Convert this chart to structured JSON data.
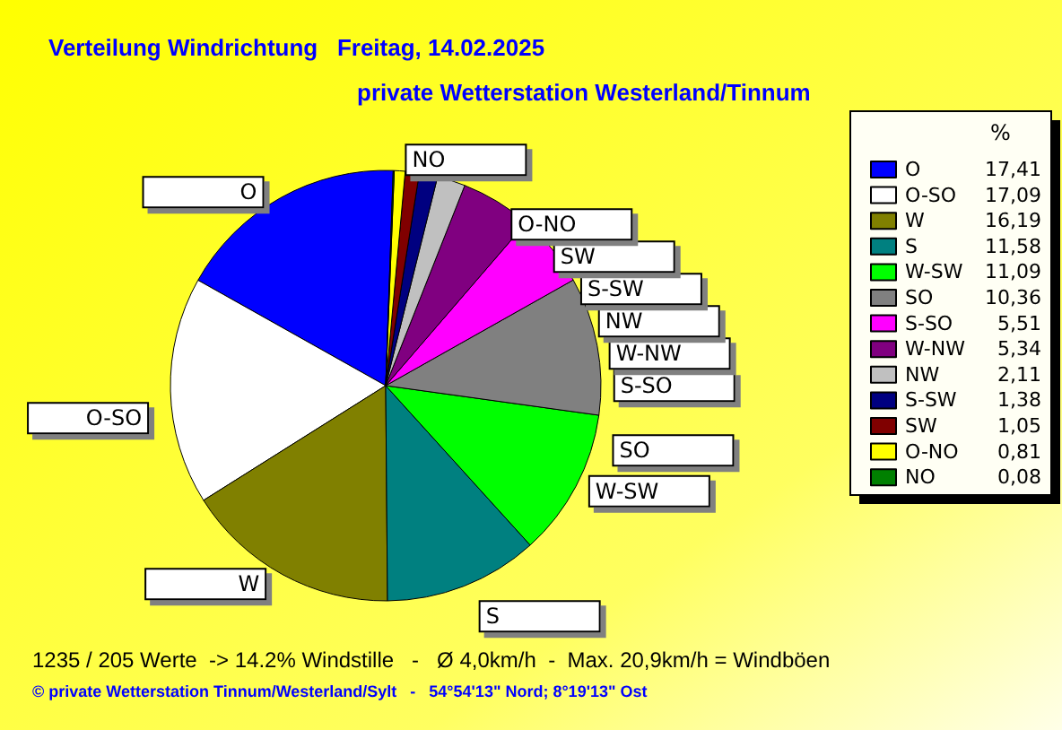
{
  "chart_data": {
    "type": "pie",
    "title": "Verteilung Windrichtung   Freitag, 14.02.2025",
    "subtitle": "private Wetterstation Westerland/Tinnum",
    "legend_title": "%",
    "legend": "right",
    "categories": [
      "O",
      "O-SO",
      "W",
      "S",
      "W-SW",
      "SO",
      "S-SO",
      "W-NW",
      "NW",
      "S-SW",
      "SW",
      "O-NO",
      "NO"
    ],
    "values": [
      17.41,
      17.09,
      16.19,
      11.58,
      11.09,
      10.36,
      5.51,
      5.34,
      2.11,
      1.38,
      1.05,
      0.81,
      0.08
    ],
    "value_labels": [
      "17,41",
      "17,09",
      "16,19",
      "11,58",
      "11,09",
      "10,36",
      "5,51",
      "5,34",
      "2,11",
      "1,38",
      "1,05",
      "0,81",
      "0,08"
    ],
    "colors": [
      "#0000ff",
      "#ffffff",
      "#808000",
      "#008080",
      "#00ff00",
      "#808080",
      "#ff00ff",
      "#800080",
      "#c0c0c0",
      "#000080",
      "#800000",
      "#ffff00",
      "#008000"
    ],
    "annotations": [
      "1235 / 205 Werte  -> 14.2% Windstille   -   Ø 4,0km/h  -  Max. 20,9km/h = Windböen",
      "© private Wetterstation Tinnum/Westerland/Sylt   -   54°54'13\" Nord; 8°19'13\" Ost"
    ]
  }
}
